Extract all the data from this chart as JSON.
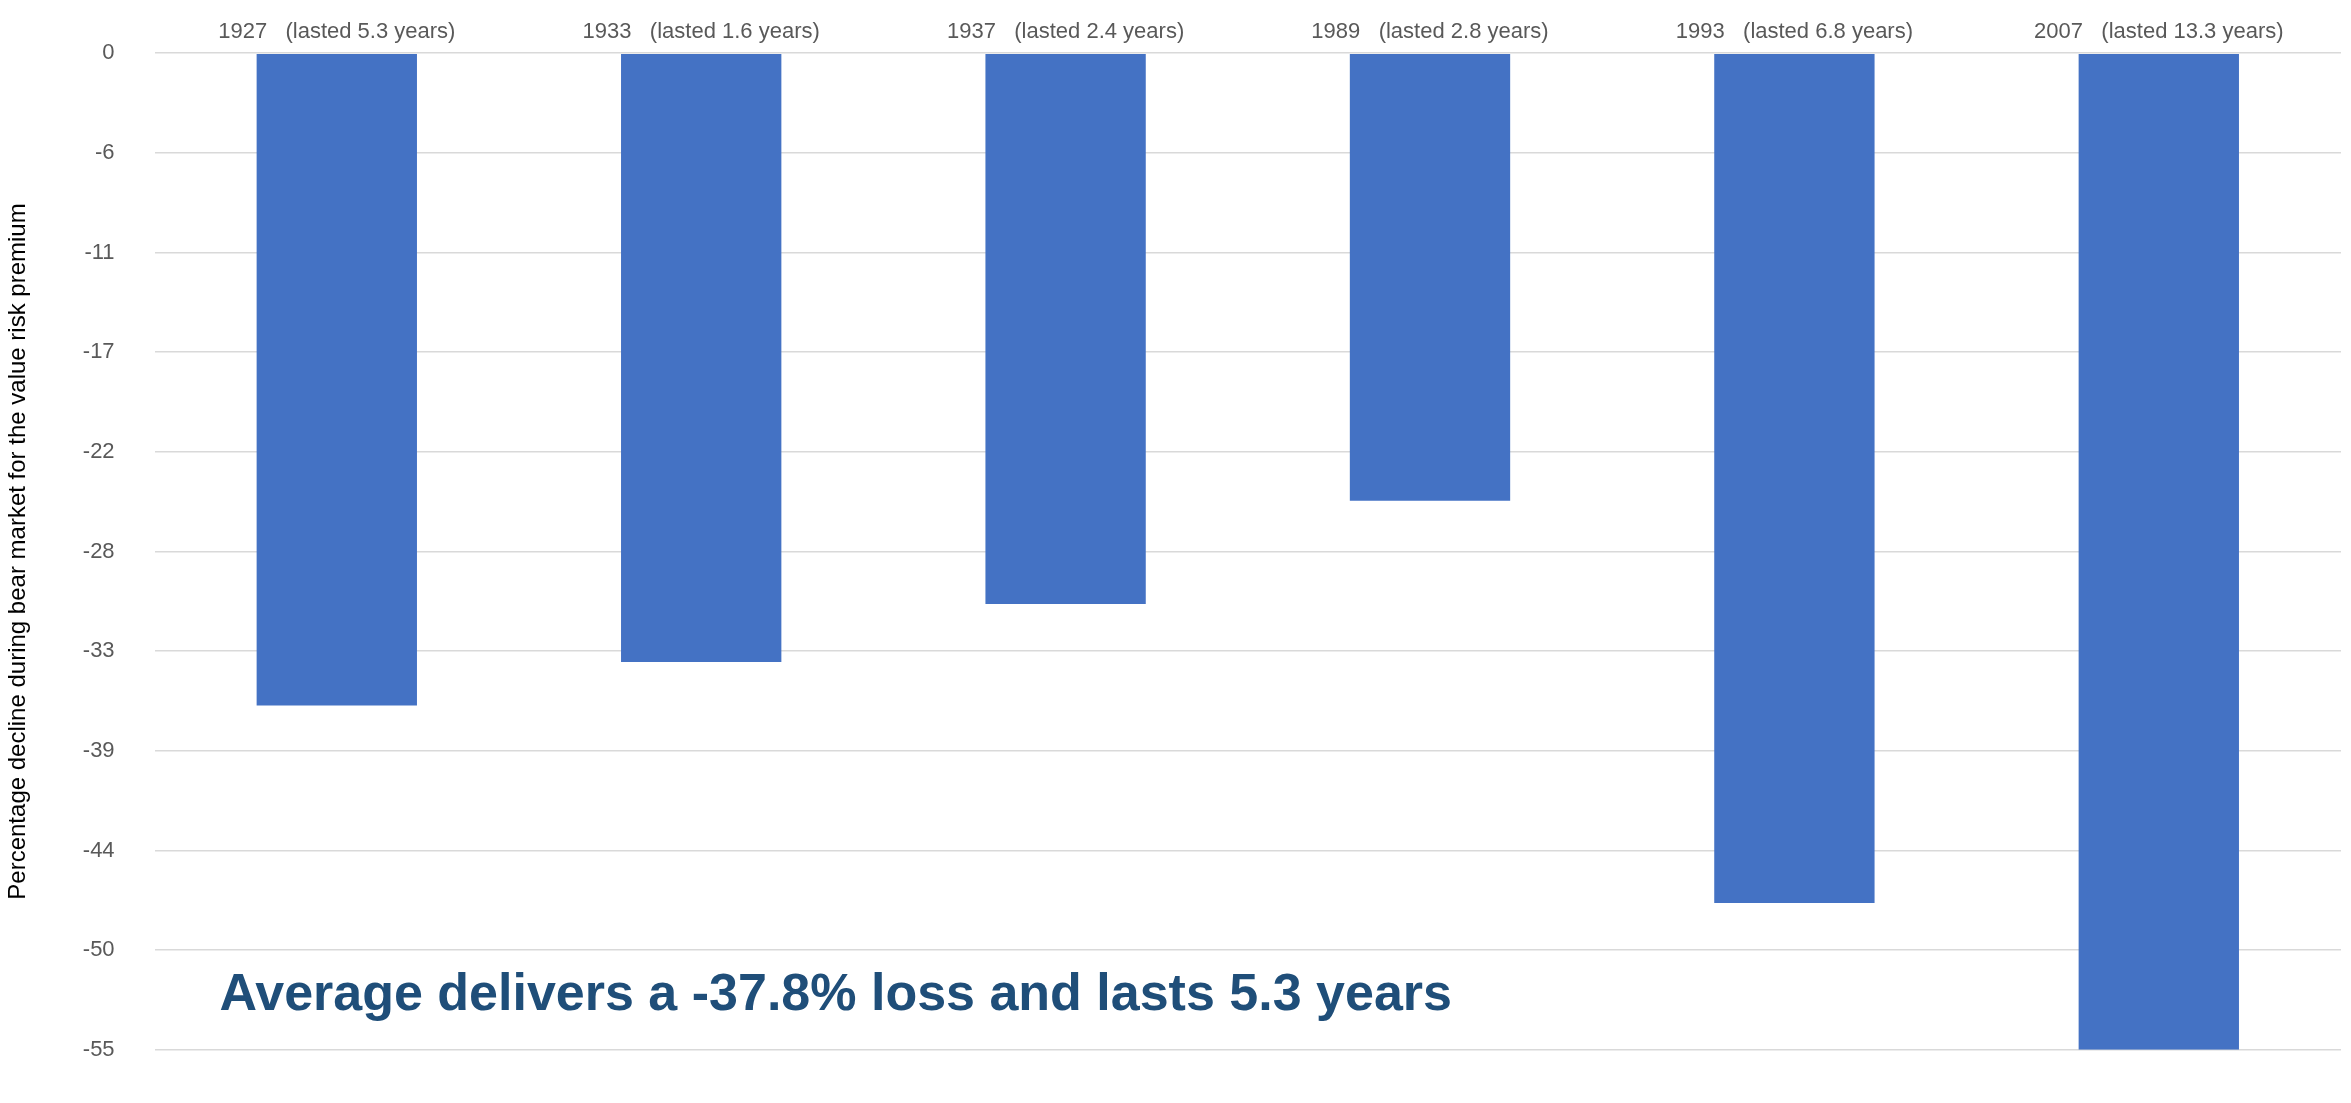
{
  "chart_data": {
    "type": "bar",
    "ylabel": "Percentage decline during bear market for the value risk premium",
    "categories": [
      "1927   (lasted 5.3 years)",
      "1933   (lasted 1.6 years)",
      "1937   (lasted 2.4 years)",
      "1989   (lasted 2.8 years)",
      "1993   (lasted 6.8 years)",
      "2007   (lasted 13.3 years)"
    ],
    "values": [
      -36.0,
      -33.6,
      -30.4,
      -24.7,
      -46.9,
      -55.0
    ],
    "color": "#4472c4",
    "ylim": [
      -55,
      0
    ],
    "yticks": [
      {
        "value": 0,
        "label": "0"
      },
      {
        "value": -5.5,
        "label": "-6"
      },
      {
        "value": -11,
        "label": "-11"
      },
      {
        "value": -16.5,
        "label": "-17"
      },
      {
        "value": -22,
        "label": "-22"
      },
      {
        "value": -27.5,
        "label": "-28"
      },
      {
        "value": -33,
        "label": "-33"
      },
      {
        "value": -38.5,
        "label": "-39"
      },
      {
        "value": -44,
        "label": "-44"
      },
      {
        "value": -49.5,
        "label": "-50"
      },
      {
        "value": -55,
        "label": "-55"
      }
    ],
    "grid": "y",
    "legend": false,
    "annotations": [
      "Average delivers a -37.8% loss and lasts 5.3 years"
    ]
  }
}
